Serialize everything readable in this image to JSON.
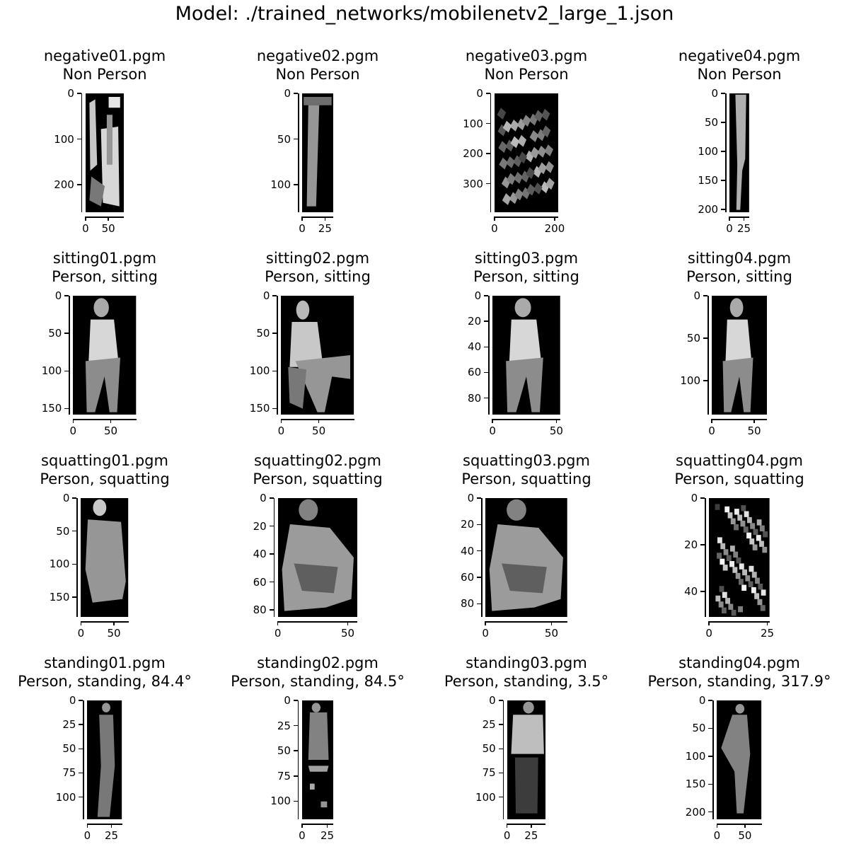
{
  "title": "Model: ./trained_networks/mobilenetv2_large_1.json",
  "chart_data": {
    "type": "image-grid",
    "colormap": "gray",
    "panels": [
      {
        "file": "negative01.pgm",
        "label": "Non Person",
        "width": 84,
        "height": 260,
        "xticks": [
          0,
          50
        ],
        "yticks": [
          0,
          100,
          200
        ],
        "shape": "clutter"
      },
      {
        "file": "negative02.pgm",
        "label": "Non Person",
        "width": 34,
        "height": 130,
        "xticks": [
          0,
          25
        ],
        "yticks": [
          0,
          50,
          100
        ],
        "shape": "strip"
      },
      {
        "file": "negative03.pgm",
        "label": "Non Person",
        "width": 212,
        "height": 395,
        "xticks": [
          0,
          200
        ],
        "yticks": [
          0,
          100,
          200,
          300
        ],
        "shape": "foliage"
      },
      {
        "file": "negative04.pgm",
        "label": "Non Person",
        "width": 34,
        "height": 205,
        "xticks": [
          0,
          25
        ],
        "yticks": [
          0,
          50,
          100,
          150,
          200
        ],
        "shape": "pole"
      },
      {
        "file": "sitting01.pgm",
        "label": "Person, sitting",
        "width": 84,
        "height": 158,
        "xticks": [
          0,
          50
        ],
        "yticks": [
          0,
          50,
          100,
          150
        ],
        "shape": "sit"
      },
      {
        "file": "sitting02.pgm",
        "label": "Person, sitting",
        "width": 97,
        "height": 158,
        "xticks": [
          0,
          50
        ],
        "yticks": [
          0,
          50,
          100,
          150
        ],
        "shape": "sit-chair"
      },
      {
        "file": "sitting03.pgm",
        "label": "Person, sitting",
        "width": 53,
        "height": 93,
        "xticks": [
          0,
          50
        ],
        "yticks": [
          0,
          20,
          40,
          60,
          80
        ],
        "shape": "sit"
      },
      {
        "file": "sitting04.pgm",
        "label": "Person, sitting",
        "width": 65,
        "height": 140,
        "xticks": [
          0,
          50
        ],
        "yticks": [
          0,
          50,
          100
        ],
        "shape": "sit-side"
      },
      {
        "file": "squatting01.pgm",
        "label": "Person, squatting",
        "width": 72,
        "height": 180,
        "xticks": [
          0,
          50
        ],
        "yticks": [
          0,
          50,
          100,
          150
        ],
        "shape": "squat-back"
      },
      {
        "file": "squatting02.pgm",
        "label": "Person, squatting",
        "width": 57,
        "height": 85,
        "xticks": [
          0,
          50
        ],
        "yticks": [
          0,
          20,
          40,
          60,
          80
        ],
        "shape": "squat"
      },
      {
        "file": "squatting03.pgm",
        "label": "Person, squatting",
        "width": 62,
        "height": 90,
        "xticks": [
          0,
          50
        ],
        "yticks": [
          0,
          20,
          40,
          60,
          80
        ],
        "shape": "squat"
      },
      {
        "file": "squatting04.pgm",
        "label": "Person, squatting",
        "width": 26,
        "height": 51,
        "xticks": [
          0,
          25
        ],
        "yticks": [
          0,
          20,
          40
        ],
        "shape": "squat-noisy"
      },
      {
        "file": "standing01.pgm",
        "label": "Person, standing, 84.4°",
        "width": 36,
        "height": 123,
        "xticks": [
          0,
          25
        ],
        "yticks": [
          0,
          25,
          50,
          75,
          100
        ],
        "shape": "stand-side"
      },
      {
        "file": "standing02.pgm",
        "label": "Person, standing, 84.5°",
        "width": 31,
        "height": 118,
        "xticks": [
          0,
          25
        ],
        "yticks": [
          0,
          25,
          50,
          75,
          100
        ],
        "shape": "stand-partial"
      },
      {
        "file": "standing03.pgm",
        "label": "Person, standing, 3.5°",
        "width": 40,
        "height": 123,
        "xticks": [
          0,
          25
        ],
        "yticks": [
          0,
          25,
          50,
          75,
          100
        ],
        "shape": "stand-front"
      },
      {
        "file": "standing04.pgm",
        "label": "Person, standing, 317.9°",
        "width": 80,
        "height": 213,
        "xticks": [
          0,
          50
        ],
        "yticks": [
          0,
          50,
          100,
          150,
          200
        ],
        "shape": "stand-walk"
      }
    ]
  }
}
